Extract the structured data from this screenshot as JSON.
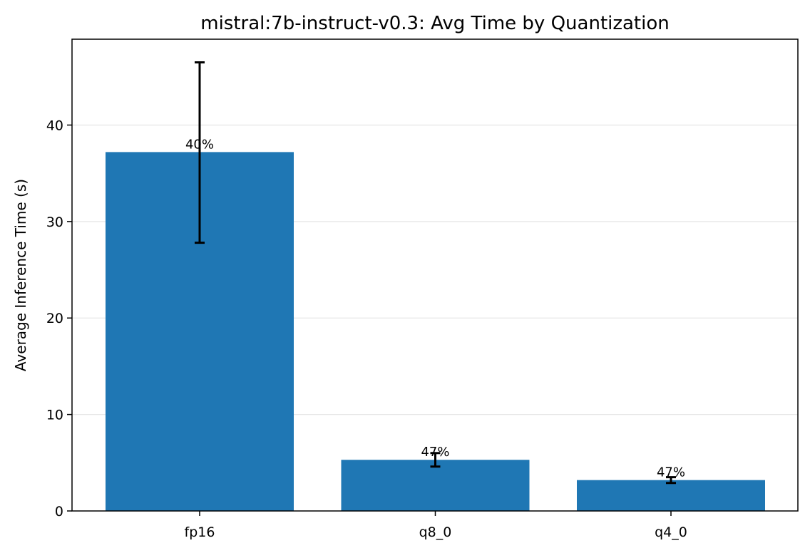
{
  "chart_data": {
    "type": "bar",
    "title": "mistral:7b-instruct-v0.3: Avg Time by Quantization",
    "xlabel": "",
    "ylabel": "Average Inference Time (s)",
    "categories": [
      "fp16",
      "q8_0",
      "q4_0"
    ],
    "values": [
      37.2,
      5.3,
      3.2
    ],
    "error_low": [
      27.8,
      4.6,
      2.9
    ],
    "error_high": [
      46.5,
      6.0,
      3.5
    ],
    "data_labels": [
      "40%",
      "47%",
      "47%"
    ],
    "ylim": [
      0,
      48.9
    ],
    "yticks": [
      0,
      10,
      20,
      30,
      40
    ],
    "grid": "y",
    "bar_color": "#1f77b4",
    "errorbar_color": "#000000",
    "grid_color": "#e6e6e6"
  }
}
